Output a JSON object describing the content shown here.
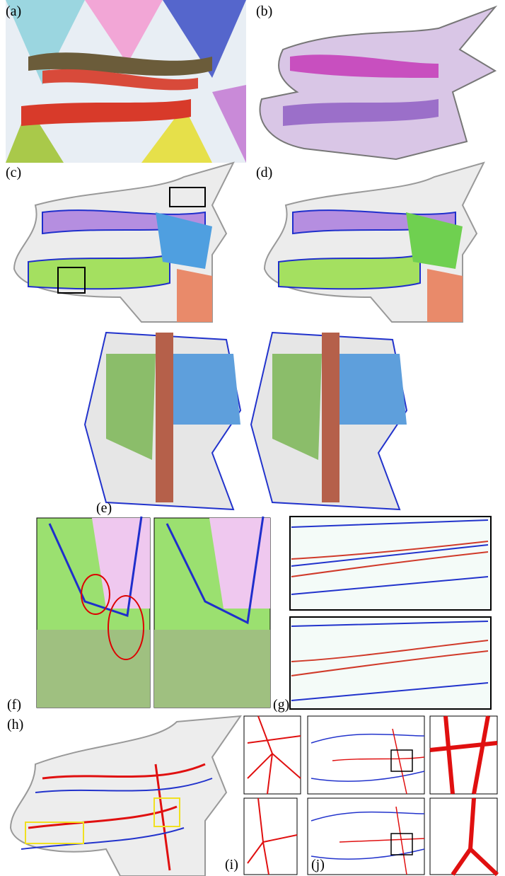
{
  "labels": [
    "(a)",
    "(b)",
    "(c)",
    "(d)",
    "(e)",
    "(f)",
    "(g)",
    "(h)",
    "(i)",
    "(j)"
  ]
}
